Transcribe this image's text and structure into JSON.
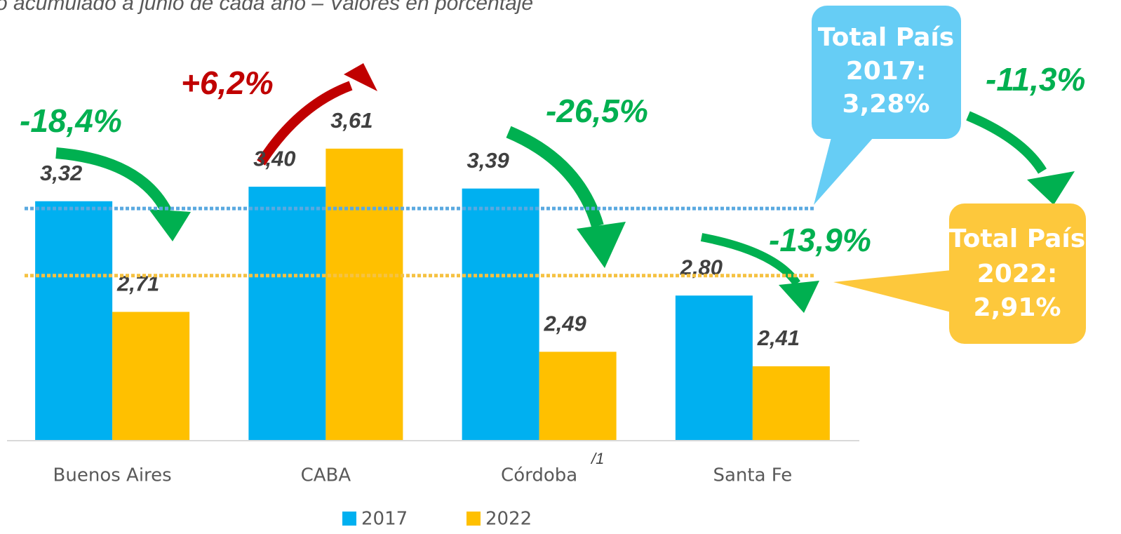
{
  "chart_data": {
    "type": "bar",
    "subtitle": "o acumulado a junio de cada año – Valores en porcentaje",
    "categories": [
      "Buenos Aires",
      "CABA",
      "Córdoba",
      "Santa Fe"
    ],
    "series": [
      {
        "name": "2017",
        "color": "#00b0f0",
        "values": [
          3.32,
          3.4,
          3.39,
          2.8
        ],
        "value_labels": [
          "3,32",
          "3,40",
          "3,39",
          "2,80"
        ]
      },
      {
        "name": "2022",
        "color": "#ffc000",
        "values": [
          2.71,
          3.61,
          2.49,
          2.41
        ],
        "value_labels": [
          "2,71",
          "3,61",
          "2,49",
          "2,41"
        ]
      }
    ],
    "ylim": [
      2,
      4
    ],
    "reference_lines": [
      {
        "value": 3.28,
        "color": "#5aa9e0",
        "lines": [
          "Total País",
          "2017:",
          "3,28%"
        ],
        "box_color": "#66cdf5"
      },
      {
        "value": 2.91,
        "color": "#f5c242",
        "lines": [
          "Total País",
          "2022:",
          "2,91%"
        ],
        "box_color": "#fdc83c"
      }
    ],
    "annotations": [
      {
        "text": "-18,4%",
        "color": "#00b050"
      },
      {
        "text": "+6,2%",
        "color": "#c00000"
      },
      {
        "text": "-26,5%",
        "color": "#00b050"
      },
      {
        "text": "-13,9%",
        "color": "#00b050"
      },
      {
        "text": "-11,3%",
        "color": "#00b050"
      }
    ],
    "footnote": "/1"
  }
}
